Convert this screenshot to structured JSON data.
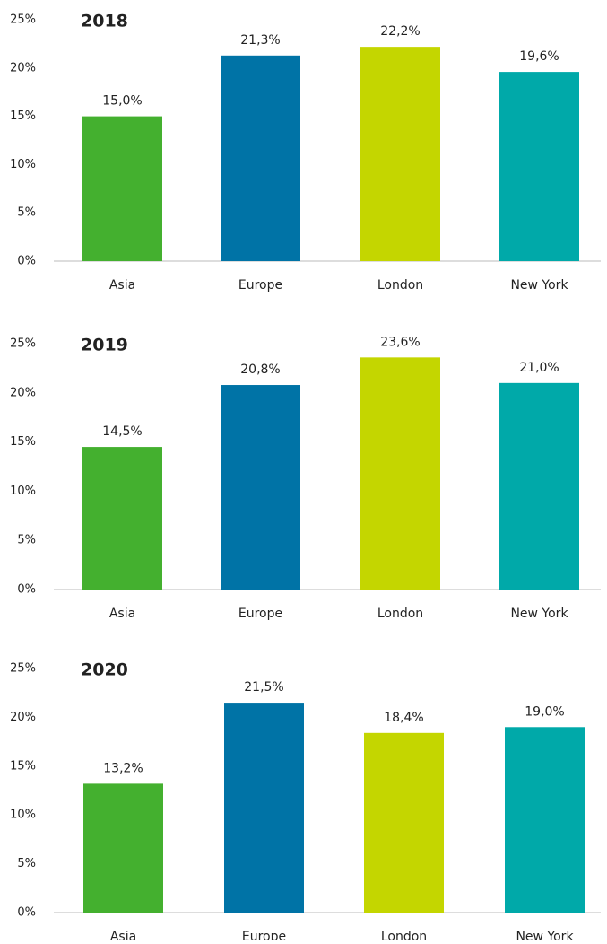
{
  "chart_data": [
    {
      "type": "bar",
      "title": "2018",
      "categories": [
        "Asia",
        "Europe",
        "London",
        "New York"
      ],
      "values": [
        15.0,
        21.3,
        22.2,
        19.6
      ],
      "value_labels": [
        "15,0%",
        "21,3%",
        "22,2%",
        "19,6%"
      ],
      "colors": [
        "#44b02f",
        "#0073a6",
        "#c4d600",
        "#00a9a9"
      ],
      "ylim": [
        0,
        25
      ],
      "yticks": [
        {
          "value": 0,
          "label": "0%"
        },
        {
          "value": 5,
          "label": "5%"
        },
        {
          "value": 10,
          "label": "10%"
        },
        {
          "value": 15,
          "label": "15%"
        },
        {
          "value": 20,
          "label": "20%"
        },
        {
          "value": 25,
          "label": "25%"
        }
      ]
    },
    {
      "type": "bar",
      "title": "2019",
      "categories": [
        "Asia",
        "Europe",
        "London",
        "New York"
      ],
      "values": [
        14.5,
        20.8,
        23.6,
        21.0
      ],
      "value_labels": [
        "14,5%",
        "20,8%",
        "23,6%",
        "21,0%"
      ],
      "colors": [
        "#44b02f",
        "#0073a6",
        "#c4d600",
        "#00a9a9"
      ],
      "ylim": [
        0,
        25
      ],
      "yticks": [
        {
          "value": 0,
          "label": "0%"
        },
        {
          "value": 5,
          "label": "5%"
        },
        {
          "value": 10,
          "label": "10%"
        },
        {
          "value": 15,
          "label": "15%"
        },
        {
          "value": 20,
          "label": "20%"
        },
        {
          "value": 25,
          "label": "25%"
        }
      ]
    },
    {
      "type": "bar",
      "title": "2020",
      "categories": [
        "Asia",
        "Europe",
        "London",
        "New York"
      ],
      "values": [
        13.2,
        21.5,
        18.4,
        19.0
      ],
      "value_labels": [
        "13,2%",
        "21,5%",
        "18,4%",
        "19,0%"
      ],
      "colors": [
        "#44b02f",
        "#0073a6",
        "#c4d600",
        "#00a9a9"
      ],
      "ylim": [
        0,
        25
      ],
      "yticks": [
        {
          "value": 0,
          "label": "0%"
        },
        {
          "value": 5,
          "label": "5%"
        },
        {
          "value": 10,
          "label": "10%"
        },
        {
          "value": 15,
          "label": "15%"
        },
        {
          "value": 20,
          "label": "20%"
        },
        {
          "value": 25,
          "label": "25%"
        }
      ]
    }
  ]
}
